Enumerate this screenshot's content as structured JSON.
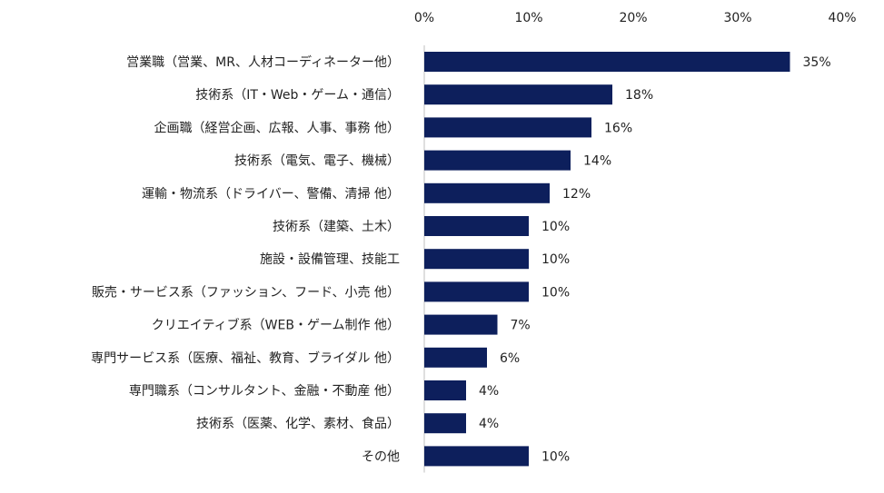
{
  "chart_data": {
    "type": "bar",
    "orientation": "horizontal",
    "categories": [
      "営業職（営業、MR、人材コーディネーター他）",
      "技術系（IT・Web・ゲーム・通信）",
      "企画職（経営企画、広報、人事、事務 他）",
      "技術系（電気、電子、機械）",
      "運輸・物流系（ドライバー、警備、清掃 他）",
      "技術系（建築、土木）",
      "施設・設備管理、技能工",
      "販売・サービス系（ファッション、フード、小売 他）",
      "クリエイティブ系（WEB・ゲーム制作 他）",
      "専門サービス系（医療、福祉、教育、ブライダル 他）",
      "専門職系（コンサルタント、金融・不動産 他）",
      "技術系（医薬、化学、素材、食品）",
      "その他"
    ],
    "values": [
      35,
      18,
      16,
      14,
      12,
      10,
      10,
      10,
      7,
      6,
      4,
      4,
      10
    ],
    "value_labels": [
      "35%",
      "18%",
      "16%",
      "14%",
      "12%",
      "10%",
      "10%",
      "10%",
      "7%",
      "6%",
      "4%",
      "4%",
      "10%"
    ],
    "xlim": [
      0,
      40
    ],
    "xticks": [
      0,
      10,
      20,
      30,
      40
    ],
    "xtick_labels": [
      "0%",
      "10%",
      "20%",
      "30%",
      "40%"
    ],
    "x_axis_position": "top",
    "grid": false,
    "legend": "none",
    "bar_color": "#0d1f5c",
    "title": "",
    "xlabel": "",
    "ylabel": ""
  }
}
